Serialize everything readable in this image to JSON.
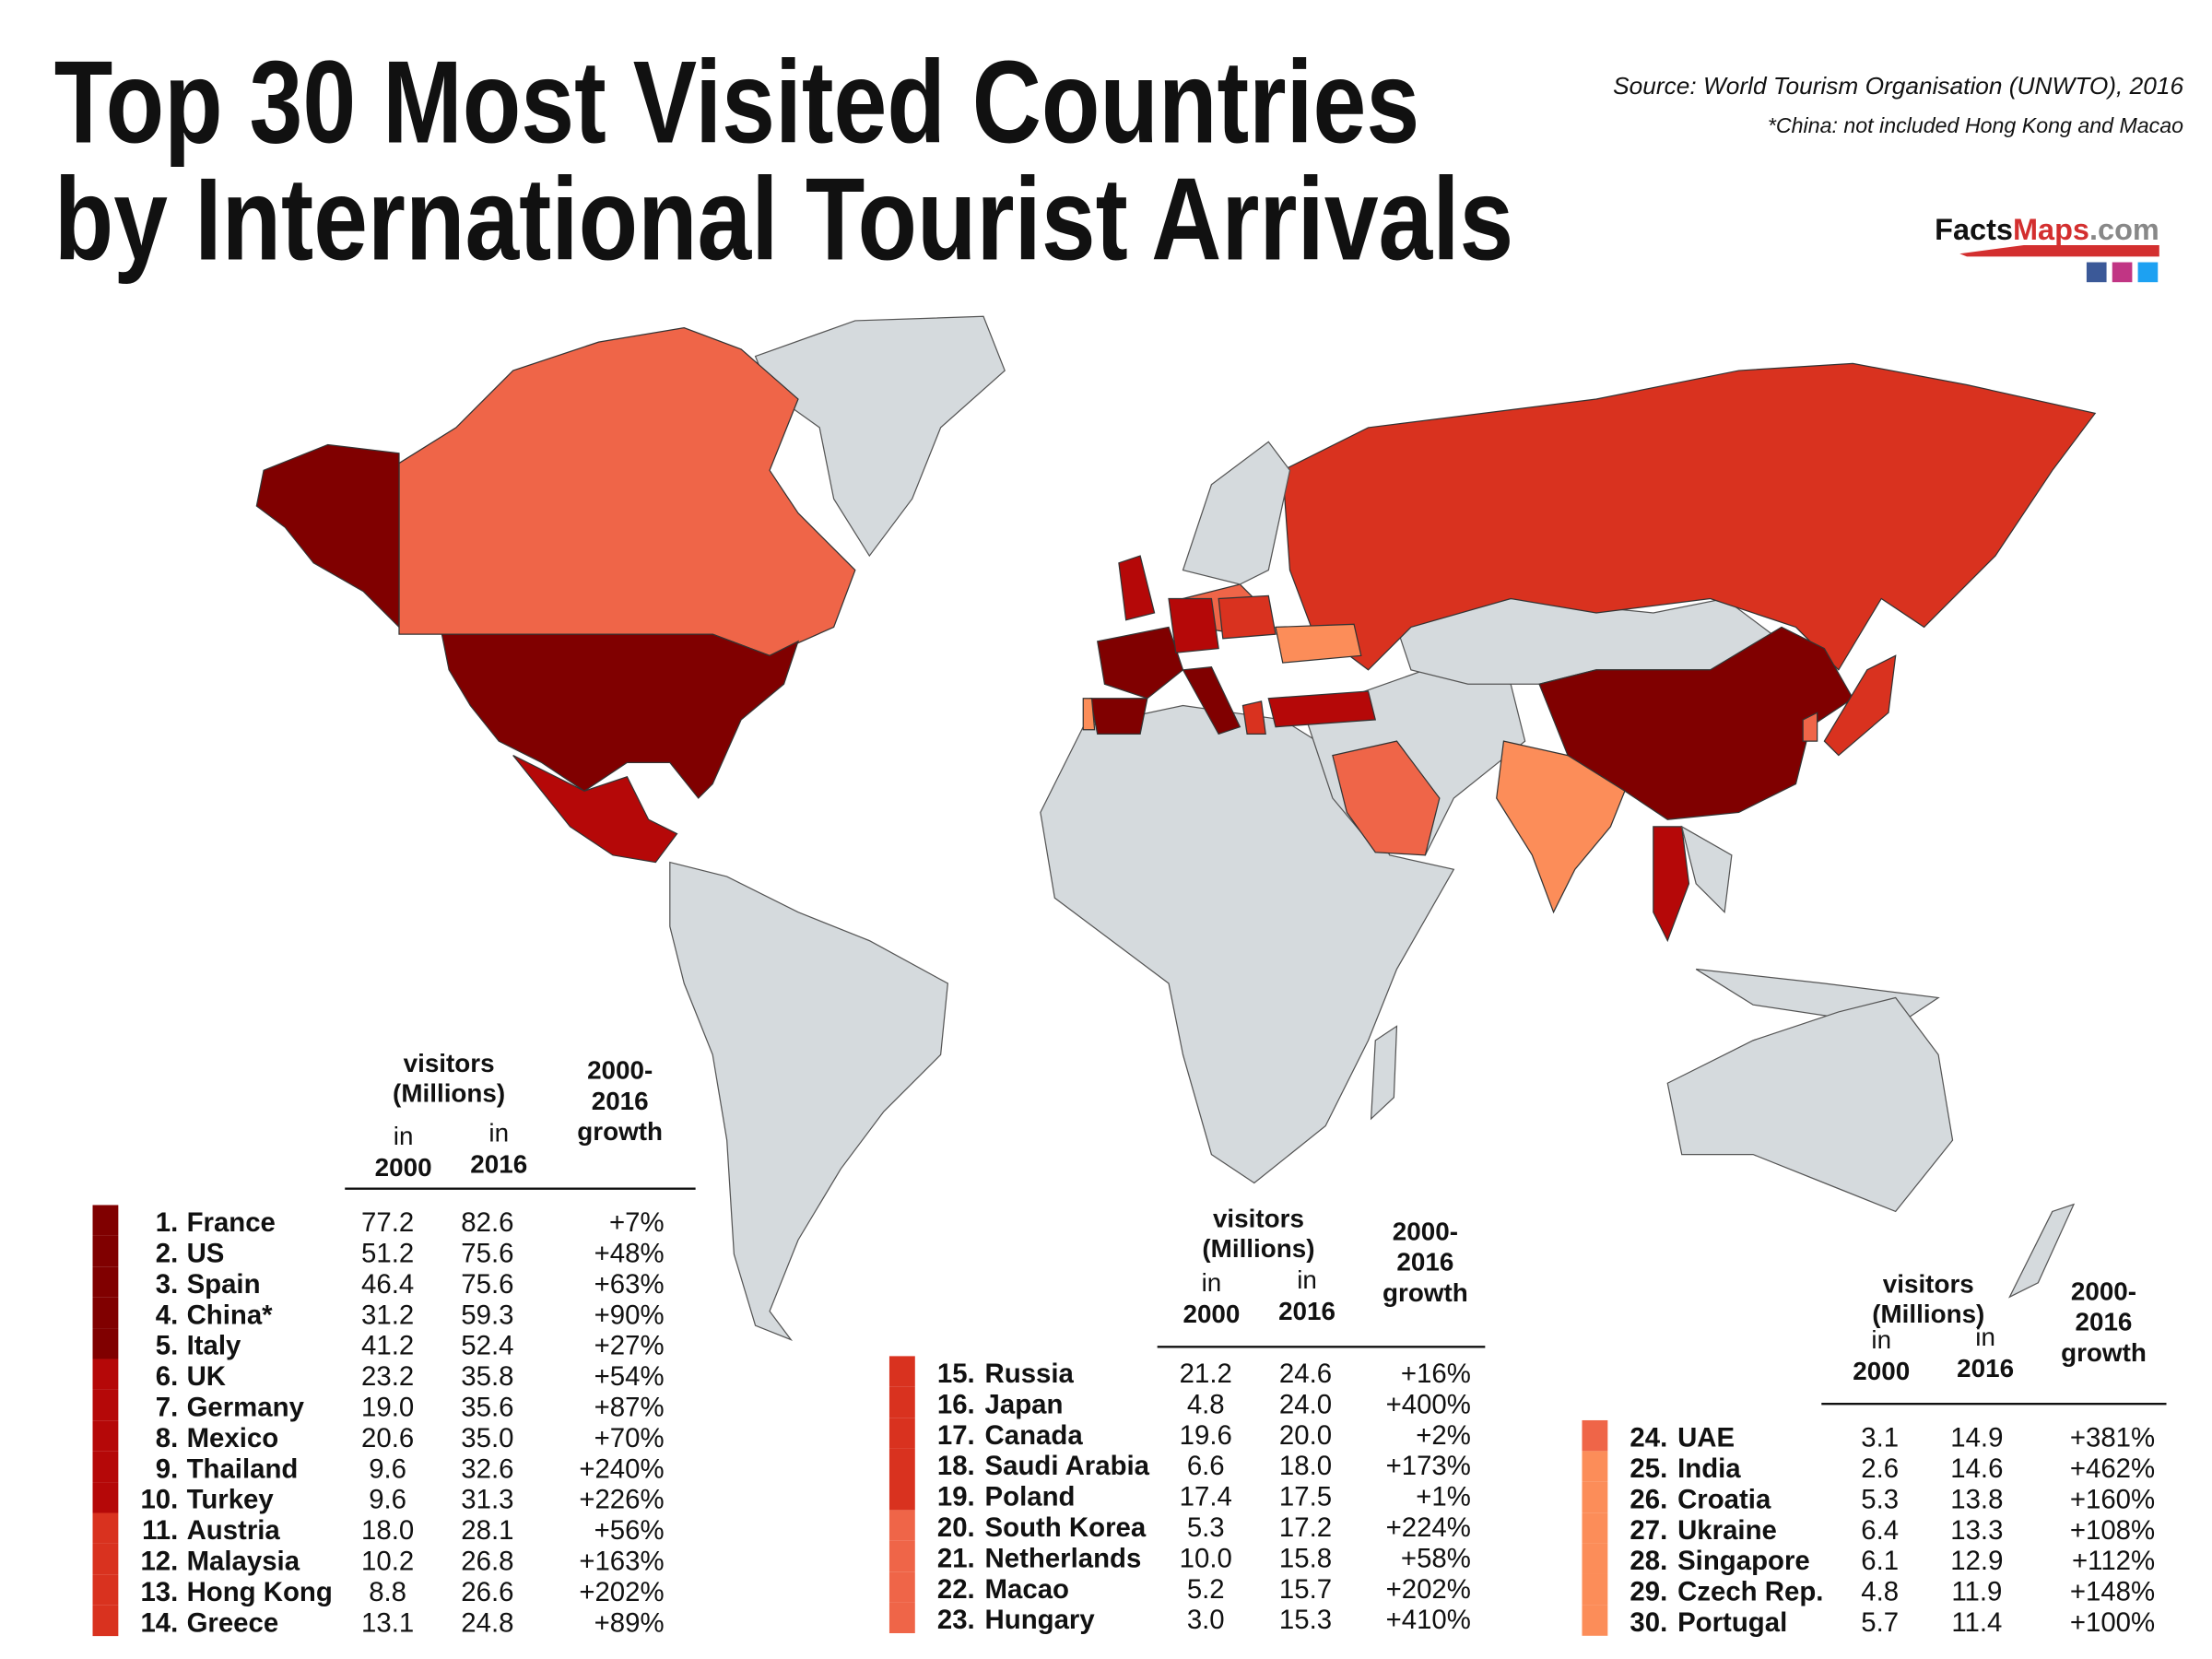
{
  "header": {
    "title": [
      "Top 30 Most Visited Countries",
      "by International Tourist Arrivals"
    ],
    "source": "Source: World Tourism Organisation (UNWTO), 2016",
    "note": "*China: not included Hong Kong and Macao",
    "logo": {
      "part1": "Facts",
      "part2": "Maps",
      "part3": ".com"
    }
  },
  "tables": [
    {
      "header": {
        "visitors": "visitors",
        "millions": "(Millions)",
        "in_a": "in",
        "year_a": "2000",
        "in_b": "in",
        "year_b": "2016",
        "growth": [
          "2000-",
          "2016",
          "growth"
        ]
      },
      "rows": [
        {
          "rank": "1.",
          "country": "France",
          "v2000": "77.2",
          "v2016": "82.6",
          "growth": "+7%",
          "color": "#800000"
        },
        {
          "rank": "2.",
          "country": "US",
          "v2000": "51.2",
          "v2016": "75.6",
          "growth": "+48%",
          "color": "#800000"
        },
        {
          "rank": "3.",
          "country": "Spain",
          "v2000": "46.4",
          "v2016": "75.6",
          "growth": "+63%",
          "color": "#800000"
        },
        {
          "rank": "4.",
          "country": "China*",
          "v2000": "31.2",
          "v2016": "59.3",
          "growth": "+90%",
          "color": "#800000"
        },
        {
          "rank": "5.",
          "country": "Italy",
          "v2000": "41.2",
          "v2016": "52.4",
          "growth": "+27%",
          "color": "#800000"
        },
        {
          "rank": "6.",
          "country": "UK",
          "v2000": "23.2",
          "v2016": "35.8",
          "growth": "+54%",
          "color": "#b50808"
        },
        {
          "rank": "7.",
          "country": "Germany",
          "v2000": "19.0",
          "v2016": "35.6",
          "growth": "+87%",
          "color": "#b50808"
        },
        {
          "rank": "8.",
          "country": "Mexico",
          "v2000": "20.6",
          "v2016": "35.0",
          "growth": "+70%",
          "color": "#b50808"
        },
        {
          "rank": "9.",
          "country": "Thailand",
          "v2000": "9.6",
          "v2016": "32.6",
          "growth": "+240%",
          "color": "#b50808"
        },
        {
          "rank": "10.",
          "country": "Turkey",
          "v2000": "9.6",
          "v2016": "31.3",
          "growth": "+226%",
          "color": "#b50808"
        },
        {
          "rank": "11.",
          "country": "Austria",
          "v2000": "18.0",
          "v2016": "28.1",
          "growth": "+56%",
          "color": "#d9321f"
        },
        {
          "rank": "12.",
          "country": "Malaysia",
          "v2000": "10.2",
          "v2016": "26.8",
          "growth": "+163%",
          "color": "#d9321f"
        },
        {
          "rank": "13.",
          "country": "Hong Kong",
          "v2000": "8.8",
          "v2016": "26.6",
          "growth": "+202%",
          "color": "#d9321f"
        },
        {
          "rank": "14.",
          "country": "Greece",
          "v2000": "13.1",
          "v2016": "24.8",
          "growth": "+89%",
          "color": "#d9321f"
        }
      ]
    },
    {
      "header": {
        "visitors": "visitors",
        "millions": "(Millions)",
        "in_a": "in",
        "year_a": "2000",
        "in_b": "in",
        "year_b": "2016",
        "growth": [
          "2000-",
          "2016",
          "growth"
        ]
      },
      "rows": [
        {
          "rank": "15.",
          "country": "Russia",
          "v2000": "21.2",
          "v2016": "24.6",
          "growth": "+16%",
          "color": "#d9321f"
        },
        {
          "rank": "16.",
          "country": "Japan",
          "v2000": "4.8",
          "v2016": "24.0",
          "growth": "+400%",
          "color": "#d9321f"
        },
        {
          "rank": "17.",
          "country": "Canada",
          "v2000": "19.6",
          "v2016": "20.0",
          "growth": "+2%",
          "color": "#d9321f"
        },
        {
          "rank": "18.",
          "country": "Saudi Arabia",
          "v2000": "6.6",
          "v2016": "18.0",
          "growth": "+173%",
          "color": "#d9321f"
        },
        {
          "rank": "19.",
          "country": "Poland",
          "v2000": "17.4",
          "v2016": "17.5",
          "growth": "+1%",
          "color": "#d9321f"
        },
        {
          "rank": "20.",
          "country": "South Korea",
          "v2000": "5.3",
          "v2016": "17.2",
          "growth": "+224%",
          "color": "#ef6548"
        },
        {
          "rank": "21.",
          "country": "Netherlands",
          "v2000": "10.0",
          "v2016": "15.8",
          "growth": "+58%",
          "color": "#ef6548"
        },
        {
          "rank": "22.",
          "country": "Macao",
          "v2000": "5.2",
          "v2016": "15.7",
          "growth": "+202%",
          "color": "#ef6548"
        },
        {
          "rank": "23.",
          "country": "Hungary",
          "v2000": "3.0",
          "v2016": "15.3",
          "growth": "+410%",
          "color": "#ef6548"
        }
      ]
    },
    {
      "header": {
        "visitors": "visitors",
        "millions": "(Millions)",
        "in_a": "in",
        "year_a": "2000",
        "in_b": "in",
        "year_b": "2016",
        "growth": [
          "2000-",
          "2016",
          "growth"
        ]
      },
      "rows": [
        {
          "rank": "24.",
          "country": "UAE",
          "v2000": "3.1",
          "v2016": "14.9",
          "growth": "+381%",
          "color": "#ef6548"
        },
        {
          "rank": "25.",
          "country": "India",
          "v2000": "2.6",
          "v2016": "14.6",
          "growth": "+462%",
          "color": "#fc8d59"
        },
        {
          "rank": "26.",
          "country": "Croatia",
          "v2000": "5.3",
          "v2016": "13.8",
          "growth": "+160%",
          "color": "#fc8d59"
        },
        {
          "rank": "27.",
          "country": "Ukraine",
          "v2000": "6.4",
          "v2016": "13.3",
          "growth": "+108%",
          "color": "#fc8d59"
        },
        {
          "rank": "28.",
          "country": "Singapore",
          "v2000": "6.1",
          "v2016": "12.9",
          "growth": "+112%",
          "color": "#fc8d59"
        },
        {
          "rank": "29.",
          "country": "Czech Rep.",
          "v2000": "4.8",
          "v2016": "11.9",
          "growth": "+148%",
          "color": "#fc8d59"
        },
        {
          "rank": "30.",
          "country": "Portugal",
          "v2000": "5.7",
          "v2016": "11.4",
          "growth": "+100%",
          "color": "#fc8d59"
        }
      ]
    }
  ]
}
